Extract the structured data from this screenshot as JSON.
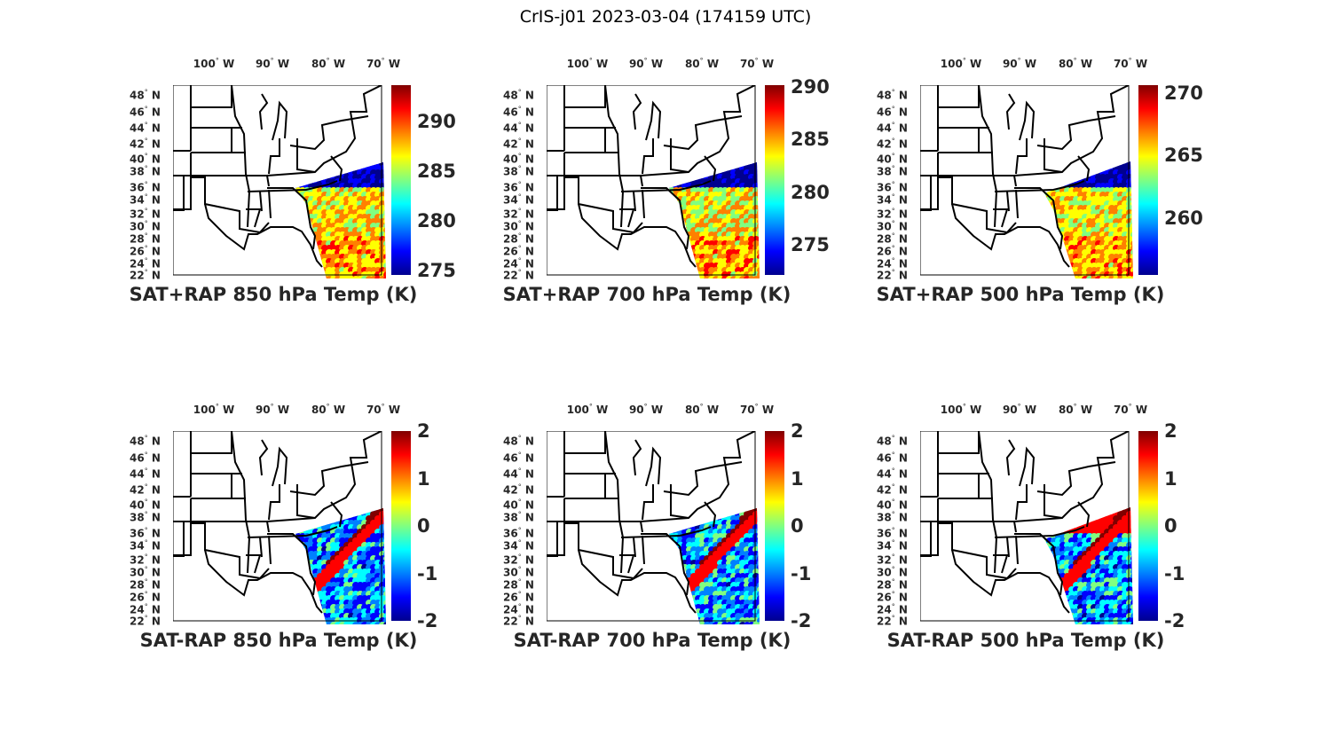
{
  "figure_title": "CrIS-j01 2023-03-04 (174159 UTC)",
  "lon_labels": [
    "100",
    "90",
    "80",
    "70"
  ],
  "lon_suffix": "W",
  "lat_labels": [
    "48",
    "46",
    "44",
    "42",
    "40",
    "38",
    "36",
    "34",
    "32",
    "30",
    "28",
    "26",
    "24",
    "22"
  ],
  "lat_suffix": "N",
  "degree_symbol": "°",
  "colormap": "jet",
  "panels": [
    {
      "title": "SAT+RAP 850 hPa Temp (K)",
      "kind": "total",
      "clim": [
        274.6,
        293.6
      ],
      "ticks": [
        "275",
        "280",
        "285",
        "290"
      ]
    },
    {
      "title": "SAT+RAP 700 hPa Temp (K)",
      "kind": "total",
      "clim": [
        272.1,
        290.2
      ],
      "ticks": [
        "275",
        "280",
        "285",
        "290"
      ]
    },
    {
      "title": "SAT+RAP 500 hPa Temp (K)",
      "kind": "total",
      "clim": [
        255.5,
        270.6
      ],
      "ticks": [
        "260",
        "265",
        "270"
      ]
    },
    {
      "title": "SAT-RAP 850 hPa Temp (K)",
      "kind": "diff",
      "clim": [
        -2,
        2
      ],
      "ticks": [
        "-2",
        "-1",
        "0",
        "1",
        "2"
      ]
    },
    {
      "title": "SAT-RAP 700 hPa Temp (K)",
      "kind": "diff",
      "clim": [
        -2,
        2
      ],
      "ticks": [
        "-2",
        "-1",
        "0",
        "1",
        "2"
      ]
    },
    {
      "title": "SAT-RAP 500 hPa Temp (K)",
      "kind": "diff",
      "clim": [
        -2,
        2
      ],
      "ticks": [
        "-2",
        "-1",
        "0",
        "1",
        "2"
      ]
    }
  ]
}
